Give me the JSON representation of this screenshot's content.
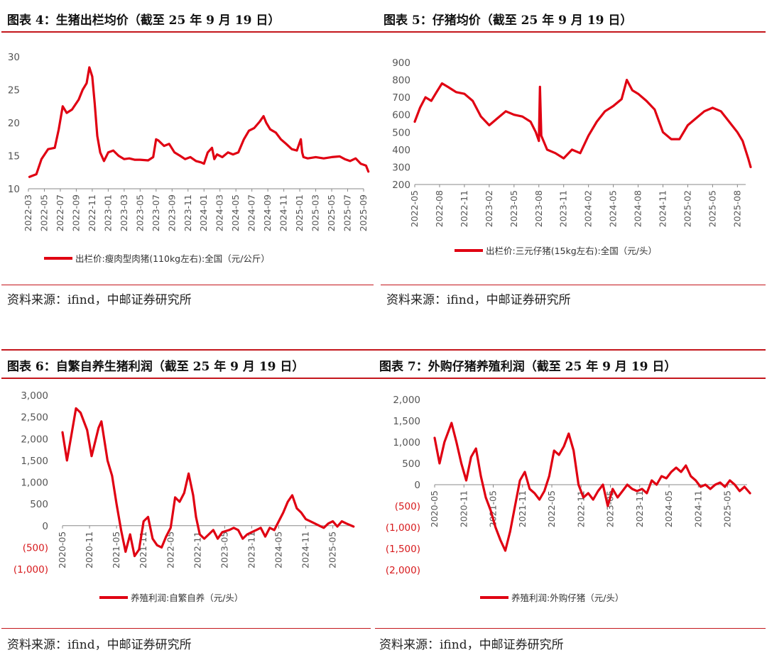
{
  "panels": [
    {
      "title": "图表 4：生猪出栏均价（截至 25 年 9 月 19 日）",
      "source": "资料来源：ifind，中邮证券研究所"
    },
    {
      "title": "图表 5：仔猪均价（截至 25 年 9 月 19 日）",
      "source": "资料来源：ifind，中邮证券研究所"
    },
    {
      "title": "图表 6：自繁自养生猪利润（截至 25 年 9 月 19 日）",
      "source": "资料来源：ifind，中邮证券研究所"
    },
    {
      "title": "图表 7：外购仔猪养殖利润（截至 25 年 9 月 19 日）",
      "source": "资料来源：ifind，中邮证券研究所"
    }
  ],
  "colors": {
    "series": "#e00012",
    "rule": "#c4161c",
    "negative": "#d7191c",
    "axis": "#888888"
  },
  "chart_data": [
    {
      "type": "line",
      "ylim": [
        10,
        30
      ],
      "yticks": [
        "10",
        "15",
        "20",
        "25",
        "30"
      ],
      "yticks_values": [
        10,
        15,
        20,
        25,
        30
      ],
      "xlim": [
        "2022-03",
        "2025-09"
      ],
      "xticks": [
        "2022-03",
        "2022-05",
        "2022-07",
        "2022-09",
        "2022-11",
        "2023-01",
        "2023-03",
        "2023-05",
        "2023-07",
        "2023-09",
        "2023-11",
        "2024-01",
        "2024-03",
        "2024-05",
        "2024-07",
        "2024-09",
        "2024-11",
        "2025-01",
        "2025-03",
        "2025-05",
        "2025-07",
        "2025-09"
      ],
      "series": [
        {
          "name": "出栏价:瘦肉型肉猪(110kg左右):全国（元/公斤）",
          "x": [
            "2022-03-05",
            "2022-04-01",
            "2022-04-20",
            "2022-05-15",
            "2022-06-10",
            "2022-06-25",
            "2022-07-10",
            "2022-07-25",
            "2022-08-15",
            "2022-09-10",
            "2022-09-25",
            "2022-10-10",
            "2022-10-20",
            "2022-11-01",
            "2022-11-10",
            "2022-11-20",
            "2022-12-01",
            "2022-12-15",
            "2023-01-01",
            "2023-01-20",
            "2023-02-10",
            "2023-03-01",
            "2023-03-20",
            "2023-04-10",
            "2023-05-01",
            "2023-06-01",
            "2023-06-20",
            "2023-07-01",
            "2023-07-10",
            "2023-08-01",
            "2023-08-20",
            "2023-09-10",
            "2023-10-01",
            "2023-10-20",
            "2023-11-10",
            "2023-12-01",
            "2023-12-20",
            "2024-01-01",
            "2024-01-15",
            "2024-02-01",
            "2024-02-10",
            "2024-02-20",
            "2024-03-10",
            "2024-04-01",
            "2024-04-20",
            "2024-05-10",
            "2024-06-01",
            "2024-06-20",
            "2024-07-10",
            "2024-08-01",
            "2024-08-15",
            "2024-08-25",
            "2024-09-10",
            "2024-10-01",
            "2024-10-20",
            "2024-11-10",
            "2024-12-01",
            "2024-12-20",
            "2025-01-05",
            "2025-01-10",
            "2025-01-15",
            "2025-02-01",
            "2025-03-01",
            "2025-04-01",
            "2025-05-01",
            "2025-06-01",
            "2025-06-20",
            "2025-07-10",
            "2025-08-01",
            "2025-08-20",
            "2025-09-10",
            "2025-09-19"
          ],
          "y": [
            11.8,
            12.2,
            14.5,
            16.0,
            16.2,
            19.0,
            22.5,
            21.5,
            22.0,
            23.5,
            25.0,
            26.0,
            28.4,
            27.0,
            23.0,
            18.0,
            15.5,
            14.2,
            15.5,
            15.8,
            15.0,
            14.5,
            14.6,
            14.4,
            14.4,
            14.3,
            14.8,
            17.5,
            17.3,
            16.5,
            16.8,
            15.5,
            15.0,
            14.5,
            14.8,
            14.2,
            14.0,
            13.8,
            15.5,
            16.2,
            14.5,
            15.2,
            14.8,
            15.5,
            15.2,
            15.5,
            17.5,
            18.8,
            19.2,
            20.2,
            21.0,
            20.0,
            19.0,
            18.5,
            17.5,
            16.8,
            16.0,
            15.8,
            17.5,
            15.5,
            14.8,
            14.6,
            14.8,
            14.6,
            14.8,
            14.9,
            14.5,
            14.2,
            14.6,
            13.8,
            13.5,
            12.6
          ]
        }
      ]
    },
    {
      "type": "line",
      "ylim": [
        200,
        900
      ],
      "yticks": [
        "200",
        "300",
        "400",
        "500",
        "600",
        "700",
        "800",
        "900"
      ],
      "yticks_values": [
        200,
        300,
        400,
        500,
        600,
        700,
        800,
        900
      ],
      "xlim": [
        "2022-05",
        "2025-09"
      ],
      "xticks": [
        "2022-05",
        "2022-08",
        "2022-11",
        "2023-02",
        "2023-05",
        "2023-08",
        "2023-11",
        "2024-02",
        "2024-05",
        "2024-08",
        "2024-11",
        "2025-02",
        "2025-05",
        "2025-08"
      ],
      "series": [
        {
          "name": "出栏价:三元仔猪(15kg左右):全国（元/头）",
          "x": [
            "2022-05-01",
            "2022-05-20",
            "2022-06-10",
            "2022-07-01",
            "2022-07-20",
            "2022-08-10",
            "2022-09-01",
            "2022-10-01",
            "2022-11-01",
            "2022-12-01",
            "2023-01-01",
            "2023-02-01",
            "2023-03-01",
            "2023-04-01",
            "2023-05-01",
            "2023-06-01",
            "2023-07-01",
            "2023-07-20",
            "2023-08-01",
            "2023-08-05",
            "2023-08-10",
            "2023-09-01",
            "2023-10-01",
            "2023-11-01",
            "2023-12-01",
            "2024-01-01",
            "2024-02-01",
            "2024-03-01",
            "2024-04-01",
            "2024-05-01",
            "2024-06-01",
            "2024-06-20",
            "2024-07-10",
            "2024-08-01",
            "2024-09-01",
            "2024-10-01",
            "2024-11-01",
            "2024-12-01",
            "2025-01-01",
            "2025-02-01",
            "2025-03-01",
            "2025-04-01",
            "2025-05-01",
            "2025-06-01",
            "2025-07-01",
            "2025-08-01",
            "2025-08-20",
            "2025-09-10",
            "2025-09-19"
          ],
          "y": [
            560,
            640,
            700,
            680,
            730,
            780,
            760,
            730,
            720,
            680,
            590,
            540,
            580,
            620,
            600,
            590,
            560,
            500,
            450,
            760,
            480,
            400,
            380,
            350,
            400,
            380,
            480,
            560,
            620,
            650,
            690,
            800,
            740,
            720,
            680,
            630,
            500,
            460,
            460,
            540,
            580,
            620,
            640,
            620,
            560,
            500,
            450,
            350,
            300
          ]
        }
      ]
    },
    {
      "type": "line",
      "ylim": [
        -1000,
        3000
      ],
      "yticks": [
        "(1,000)",
        "(500)",
        "0",
        "500",
        "1,000",
        "1,500",
        "2,000",
        "2,500",
        "3,000"
      ],
      "yticks_values": [
        -1000,
        -500,
        0,
        500,
        1000,
        1500,
        2000,
        2500,
        3000
      ],
      "xlim": [
        "2020-05",
        "2025-09"
      ],
      "xticks": [
        "2020-05",
        "2020-11",
        "2021-05",
        "2021-11",
        "2022-05",
        "2022-11",
        "2023-05",
        "2023-11",
        "2024-05",
        "2024-11",
        "2025-05"
      ],
      "series": [
        {
          "name": "养殖利润:自繁自养（元/头）",
          "x": [
            "2020-05-01",
            "2020-06-01",
            "2020-07-01",
            "2020-08-01",
            "2020-09-01",
            "2020-10-15",
            "2020-11-15",
            "2021-01-01",
            "2021-01-20",
            "2021-03-01",
            "2021-04-01",
            "2021-05-01",
            "2021-06-01",
            "2021-07-01",
            "2021-08-01",
            "2021-09-01",
            "2021-10-01",
            "2021-11-01",
            "2021-12-01",
            "2022-01-01",
            "2022-02-01",
            "2022-03-01",
            "2022-04-01",
            "2022-05-01",
            "2022-06-01",
            "2022-07-01",
            "2022-08-01",
            "2022-09-01",
            "2022-10-01",
            "2022-10-20",
            "2022-11-15",
            "2022-12-15",
            "2023-01-15",
            "2023-02-15",
            "2023-03-15",
            "2023-04-15",
            "2023-06-01",
            "2023-07-01",
            "2023-08-01",
            "2023-09-01",
            "2023-10-01",
            "2023-11-01",
            "2023-12-01",
            "2024-01-01",
            "2024-02-01",
            "2024-03-01",
            "2024-04-01",
            "2024-05-01",
            "2024-06-01",
            "2024-07-01",
            "2024-08-01",
            "2024-09-01",
            "2024-10-01",
            "2024-11-01",
            "2024-12-01",
            "2025-01-01",
            "2025-02-01",
            "2025-03-01",
            "2025-04-01",
            "2025-05-01",
            "2025-06-01",
            "2025-07-01",
            "2025-08-01",
            "2025-09-19"
          ],
          "y": [
            2150,
            1500,
            2100,
            2700,
            2600,
            2200,
            1600,
            2250,
            2400,
            1500,
            1150,
            500,
            -100,
            -600,
            -200,
            -700,
            -550,
            100,
            200,
            -300,
            -450,
            -500,
            -250,
            -50,
            650,
            550,
            750,
            1200,
            700,
            200,
            -200,
            -300,
            -200,
            -100,
            -300,
            -150,
            -100,
            -50,
            -100,
            -300,
            -200,
            -150,
            -100,
            -50,
            -250,
            -50,
            -100,
            100,
            300,
            550,
            700,
            400,
            300,
            150,
            100,
            50,
            0,
            -50,
            50,
            100,
            -20,
            100,
            50,
            -20
          ]
        }
      ]
    },
    {
      "type": "line",
      "ylim": [
        -2000,
        2000
      ],
      "yticks": [
        "(2,000)",
        "(1,500)",
        "(1,000)",
        "(500)",
        "0",
        "500",
        "1,000",
        "1,500",
        "2,000"
      ],
      "yticks_values": [
        -2000,
        -1500,
        -1000,
        -500,
        0,
        500,
        1000,
        1500,
        2000
      ],
      "xlim": [
        "2020-05",
        "2025-09"
      ],
      "xticks": [
        "2020-05",
        "2020-11",
        "2021-05",
        "2021-11",
        "2022-05",
        "2022-11",
        "2023-05",
        "2023-11",
        "2024-05",
        "2024-11",
        "2025-05"
      ],
      "series": [
        {
          "name": "养殖利润:外购仔猪（元/头）",
          "x": [
            "2020-05-01",
            "2020-06-01",
            "2020-07-01",
            "2020-08-15",
            "2020-09-15",
            "2020-10-15",
            "2020-11-15",
            "2020-12-15",
            "2021-01-15",
            "2021-02-15",
            "2021-03-15",
            "2021-04-15",
            "2021-05-15",
            "2021-06-15",
            "2021-07-15",
            "2021-08-15",
            "2021-09-15",
            "2021-10-15",
            "2021-11-15",
            "2021-12-15",
            "2022-01-15",
            "2022-02-15",
            "2022-03-15",
            "2022-04-15",
            "2022-05-15",
            "2022-06-15",
            "2022-07-15",
            "2022-08-15",
            "2022-09-15",
            "2022-10-15",
            "2022-11-15",
            "2022-12-15",
            "2023-01-15",
            "2023-02-15",
            "2023-03-15",
            "2023-04-15",
            "2023-05-15",
            "2023-06-15",
            "2023-07-15",
            "2023-08-15",
            "2023-09-15",
            "2023-10-15",
            "2023-11-15",
            "2023-12-15",
            "2024-01-15",
            "2024-02-15",
            "2024-03-15",
            "2024-04-15",
            "2024-05-15",
            "2024-06-15",
            "2024-07-15",
            "2024-08-15",
            "2024-09-15",
            "2024-10-15",
            "2024-11-15",
            "2024-12-15",
            "2025-01-15",
            "2025-02-15",
            "2025-03-15",
            "2025-04-15",
            "2025-05-15",
            "2025-06-15",
            "2025-07-15",
            "2025-08-15",
            "2025-09-19"
          ],
          "y": [
            1100,
            500,
            1000,
            1450,
            1000,
            500,
            100,
            650,
            850,
            200,
            -300,
            -600,
            -1000,
            -1300,
            -1550,
            -1100,
            -500,
            100,
            300,
            -100,
            -200,
            -350,
            -150,
            200,
            800,
            700,
            900,
            1200,
            800,
            0,
            -300,
            -200,
            -350,
            -150,
            0,
            -500,
            -100,
            -300,
            -150,
            0,
            -100,
            -150,
            -100,
            -200,
            100,
            0,
            200,
            150,
            300,
            400,
            300,
            450,
            200,
            100,
            -50,
            0,
            -100,
            0,
            50,
            -50,
            100,
            0,
            -150,
            -50,
            -200
          ]
        }
      ]
    }
  ]
}
